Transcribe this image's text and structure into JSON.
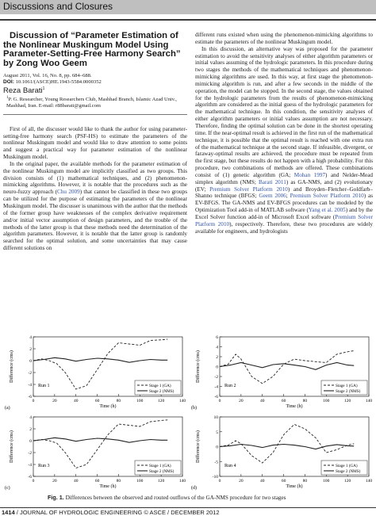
{
  "header": {
    "section": "Discussions and Closures"
  },
  "article": {
    "title": "Discussion of “Parameter Estimation of the Nonlinear Muskingum Model Using Parameter-Setting-Free Harmony Search” by Zong Woo Geem",
    "citation": "August 2011, Vol. 16, No. 8, pp. 684–688.",
    "doi_label": "DOI:",
    "doi": "10.1061/(ASCE)HE.1943-5584.0000352",
    "author": "Reza Barati",
    "author_sup": "1",
    "affiliation_sup": "1",
    "affiliation": "P. G. Researcher, Young Researchers Club, Mashhad Branch, Islamic Azad Univ., Mashhad, Iran. E-mail: r88barati@gmail.com",
    "left_p1": "First of all, the discusser would like to thank the author for using parameter-setting-free harmony search (PSF-HS) to estimate the parameters of the nonlinear Muskingum model and would like to draw attention to some points and suggest a practical way for parameter estimation of the nonlinear Muskingum model.",
    "left_p2_a": "In the original paper, the available methods for the parameter estimation of the nonlinear Muskingum model are implicitly classified as two groups. This division consists of (1) mathematical techniques, and (2) phenomenon-mimicking algorithms. However, it is notable that the procedures such as the neuro-fuzzy approach (",
    "left_p2_cite": "Chu 2009",
    "left_p2_b": ") that cannot be classified in these two groups can be utilized for the purpose of estimating the parameters of the nonlinear Muskingum model. The discusser is unanimous with the author that the methods of the former group have weaknesses of the complex derivative requirement and/or initial vector assumption of design parameters, and the trouble of the methods of the latter group is that these methods need the determination of the algorithm parameters. However, it is notable that the latter group is randomly searched for the optimal solution, and some uncertainties that may cause different solutions on",
    "right_p0": "different runs existed when using the phenomenon-mimicking algorithms to estimate the parameters of the nonlinear Muskingum model.",
    "right_p1": "In this discussion, an alternative way was proposed for the parameter estimation to avoid the sensitivity analyses of either algorithm parameters or initial values assuming of the hydrologic parameters. In this procedure during two stages the methods of the mathematical techniques and phenomenon-mimicking algorithms are used. In this way, at first stage the phenomenon-mimicking algorithm is run, and after a few seconds in the middle of the operation, the model can be stopped. In the second stage, the values obtained for the hydrologic parameters from the results of phenomenon-mimicking algorithm are considered as the initial guess of the hydrologic parameters for the mathematical technique. In this condition, the sensitivity analyses of either algorithm parameters or initial values assumption are not necessary. Therefore, finding the optimal solution can be done in the shortest operating time. If the near-optimal result is achieved in the first run of the mathematical technique, it is possible that the optimal result is reached with one extra run of the mathematical technique at the second stage. If infeasible, divergent, or faraway-optimal results are achieved, the procedure must be repeated from the first stage, but these results do not happen with a high probability. For this procedure, two combinations of methods are offered. These combinations consist of (1) genetic algorithm (GA; ",
    "right_cite1": "Mohan 1997",
    "right_p1_b": ") and Nelder-Mead simplex algorithm (NMS; ",
    "right_cite2": "Barati 2011",
    "right_p1_c": ") as GA-NMS, and (2) evolutionary (EV; ",
    "right_cite3": "Premium Solver Platform 2010",
    "right_p1_d": ") and Broyden–Fletcher–Goldfarb–Shanno technique (BFGS; ",
    "right_cite4": "Geem 2006",
    "right_p1_e": "; ",
    "right_cite5": "Premium Solver Platform 2010",
    "right_p1_f": ") as EV-BFGS. The GA-NMS and EV-BFGS procedures can be modeled by the Optimization Tool add-in of MATLAB software (",
    "right_cite6": "Yang et al. 2005",
    "right_p1_g": ") and by the Excel Solver function add-in of Microsoft Excel software (",
    "right_cite7": "Premium Solver Platform 2010",
    "right_p1_h": "), respectively. Therefore, these two procedures are widely available for engineers, and hydrologists"
  },
  "figure": {
    "caption_label": "Fig. 1.",
    "caption_text": "Differences between the observed and routed outflows of the GA-NMS procedure for two stages",
    "y_label": "Difference (cms)",
    "x_label": "Time (h)",
    "legend": [
      "Stage 1 (GA)",
      "Stage 2 (NMS)"
    ]
  },
  "chart_data": [
    {
      "type": "line",
      "panel": "(a)",
      "run_label": "Run 1",
      "xlim": [
        0,
        140
      ],
      "ylim": [
        -6,
        4
      ],
      "yticks": [
        -6,
        -4,
        -2,
        0,
        2,
        4
      ],
      "xticks": [
        0,
        20,
        40,
        60,
        80,
        100,
        120,
        140
      ],
      "series": [
        {
          "name": "Stage 1 (GA)",
          "style": "dashed",
          "x": [
            0,
            8,
            15,
            22,
            30,
            40,
            50,
            60,
            70,
            80,
            90,
            100,
            110,
            120,
            126
          ],
          "y": [
            0,
            0.3,
            0,
            -0.5,
            -2,
            -4.8,
            -4.2,
            -1.5,
            1.2,
            3,
            2.8,
            2.6,
            3.4,
            3.5,
            3.6
          ]
        },
        {
          "name": "Stage 2 (NMS)",
          "style": "solid",
          "x": [
            0,
            10,
            20,
            30,
            40,
            50,
            60,
            70,
            80,
            90,
            100,
            110,
            120,
            126
          ],
          "y": [
            0,
            0.2,
            0.5,
            0.3,
            -0.1,
            0.2,
            0.4,
            0.3,
            0.1,
            -0.3,
            0,
            0.2,
            0.1,
            0.1
          ]
        }
      ]
    },
    {
      "type": "line",
      "panel": "(b)",
      "run_label": "Run 2",
      "xlim": [
        0,
        140
      ],
      "ylim": [
        -6,
        6
      ],
      "yticks": [
        -6,
        -4,
        -2,
        0,
        2,
        4,
        6
      ],
      "xticks": [
        0,
        20,
        40,
        60,
        80,
        100,
        120,
        140
      ],
      "series": [
        {
          "name": "Stage 1 (GA)",
          "style": "dashed",
          "x": [
            0,
            8,
            15,
            20,
            30,
            40,
            50,
            60,
            70,
            80,
            90,
            100,
            110,
            120,
            126
          ],
          "y": [
            0,
            0.5,
            2.5,
            1.5,
            -2,
            -3.4,
            -2,
            0.5,
            1.5,
            1.2,
            1,
            0.8,
            2.5,
            3,
            3.2
          ]
        },
        {
          "name": "Stage 2 (NMS)",
          "style": "solid",
          "x": [
            0,
            10,
            20,
            30,
            40,
            50,
            60,
            70,
            80,
            90,
            100,
            110,
            120,
            126
          ],
          "y": [
            0,
            0.3,
            0.8,
            0.3,
            -0.2,
            0.4,
            0.6,
            0.3,
            0,
            -0.6,
            0.3,
            0.8,
            0.3,
            0.2
          ]
        }
      ]
    },
    {
      "type": "line",
      "panel": "(c)",
      "run_label": "Run 3",
      "xlim": [
        0,
        140
      ],
      "ylim": [
        -6,
        4
      ],
      "yticks": [
        -6,
        -4,
        -2,
        0,
        2,
        4
      ],
      "xticks": [
        0,
        20,
        40,
        60,
        80,
        100,
        120,
        140
      ],
      "series": [
        {
          "name": "Stage 1 (GA)",
          "style": "dashed",
          "x": [
            0,
            8,
            15,
            22,
            30,
            40,
            50,
            60,
            70,
            80,
            90,
            100,
            110,
            120,
            126
          ],
          "y": [
            0,
            0.2,
            0,
            -0.4,
            -2,
            -4.6,
            -4,
            -1.5,
            1,
            2.8,
            2.6,
            2.4,
            3.2,
            3.4,
            3.5
          ]
        },
        {
          "name": "Stage 2 (NMS)",
          "style": "solid",
          "x": [
            0,
            10,
            20,
            30,
            40,
            50,
            60,
            70,
            80,
            90,
            100,
            110,
            120,
            126
          ],
          "y": [
            0,
            0.2,
            0.5,
            0.3,
            -0.1,
            0.2,
            0.4,
            0.3,
            0.1,
            -0.3,
            0,
            0.2,
            0.1,
            0.1
          ]
        }
      ]
    },
    {
      "type": "line",
      "panel": "(d)",
      "run_label": "Run 4",
      "xlim": [
        0,
        140
      ],
      "ylim": [
        -10,
        10
      ],
      "yticks": [
        -10,
        -5,
        0,
        5,
        10
      ],
      "xticks": [
        0,
        20,
        40,
        60,
        80,
        100,
        120,
        140
      ],
      "series": [
        {
          "name": "Stage 1 (GA)",
          "style": "dashed",
          "x": [
            0,
            8,
            15,
            20,
            30,
            40,
            50,
            60,
            70,
            80,
            90,
            100,
            110,
            120,
            126
          ],
          "y": [
            0,
            0.5,
            2,
            1,
            -3,
            -5.5,
            -2,
            4,
            7.5,
            6,
            3,
            -2,
            -1,
            0.5,
            1
          ]
        },
        {
          "name": "Stage 2 (NMS)",
          "style": "solid",
          "x": [
            0,
            10,
            20,
            30,
            40,
            50,
            60,
            70,
            80,
            90,
            100,
            110,
            120,
            126
          ],
          "y": [
            0,
            0.3,
            0.8,
            0.4,
            -0.3,
            0.5,
            0.8,
            0.5,
            0,
            -0.8,
            0.2,
            0.7,
            0.3,
            0.2
          ]
        }
      ]
    }
  ],
  "footer": {
    "page": "1414",
    "journal": "/ JOURNAL OF HYDROLOGIC ENGINEERING © ASCE / DECEMBER 2012"
  }
}
